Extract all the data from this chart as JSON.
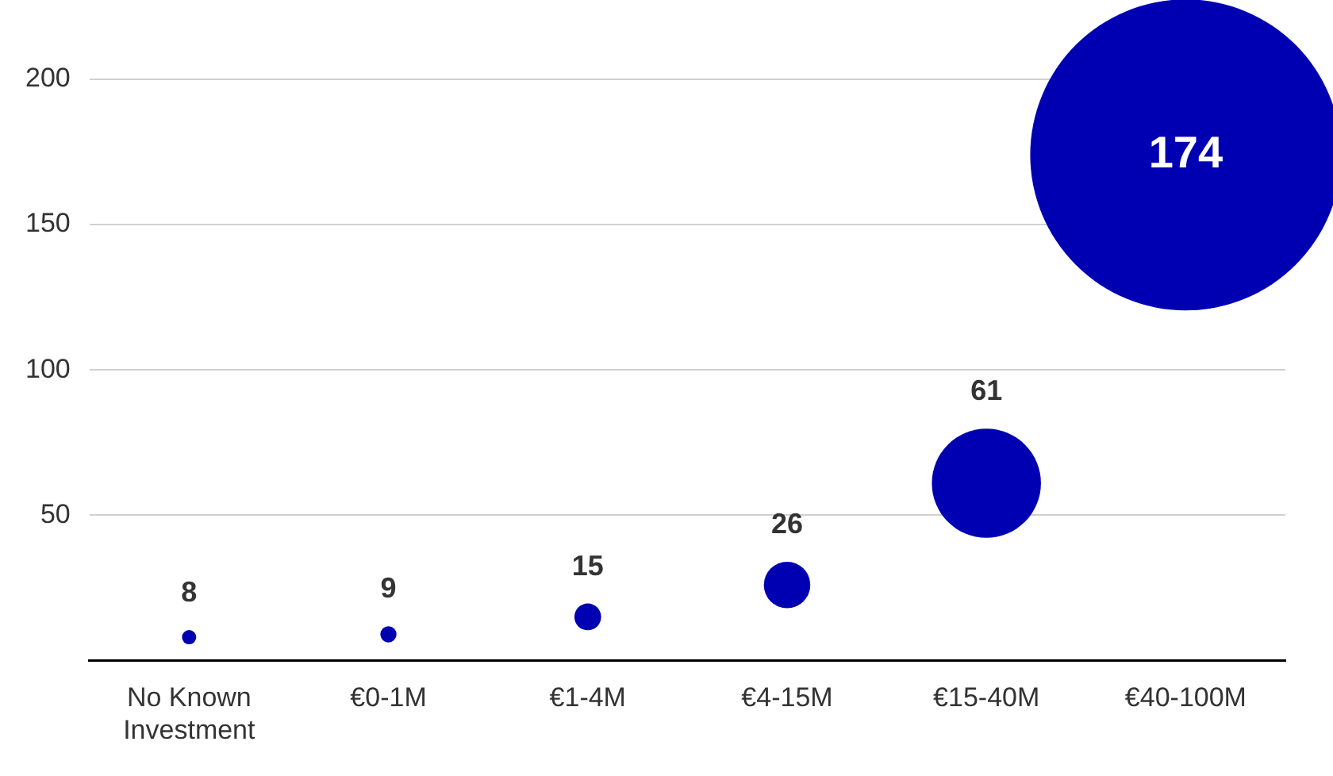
{
  "chart_data": {
    "type": "bubble",
    "categories": [
      "No Known Investment",
      "€0-1M",
      "€1-4M",
      "€4-15M",
      "€15-40M",
      "€40-100M"
    ],
    "values": [
      8,
      9,
      15,
      26,
      61,
      174
    ],
    "sizes": [
      0.0021,
      0.0027,
      0.0074,
      0.0223,
      0.123,
      1
    ],
    "color": "#0000b3",
    "ylim": [
      0,
      200
    ],
    "yticks": [
      50,
      100,
      150,
      200
    ],
    "grid": "y",
    "legend": false,
    "data_labels": true
  }
}
